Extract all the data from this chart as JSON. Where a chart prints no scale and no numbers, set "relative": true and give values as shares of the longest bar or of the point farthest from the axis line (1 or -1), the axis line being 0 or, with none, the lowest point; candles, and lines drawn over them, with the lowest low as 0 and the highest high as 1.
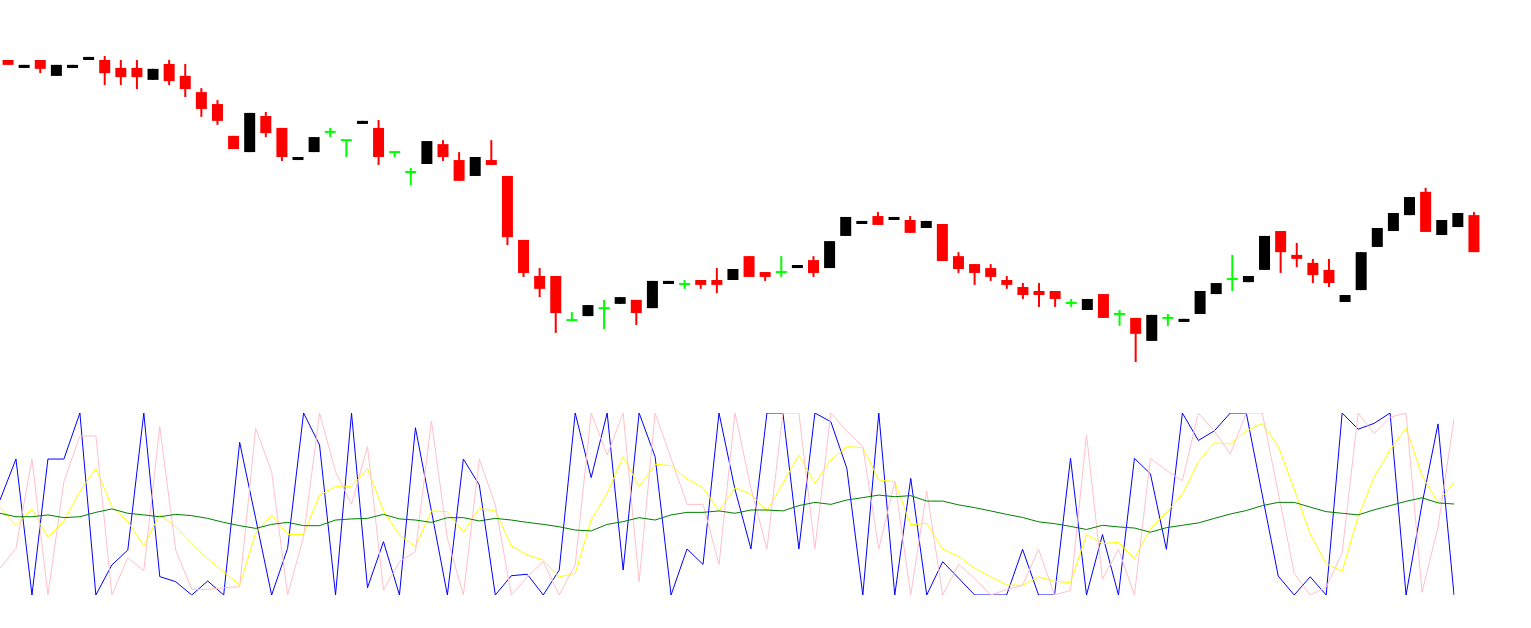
{
  "chart_data": [
    {
      "type": "candlestick",
      "relative": true,
      "legend": false,
      "categories": [
        null,
        null,
        null,
        null,
        null,
        null,
        null,
        null,
        null,
        null,
        null,
        null,
        null,
        null,
        null,
        null,
        null,
        null,
        null,
        null,
        null,
        null,
        null,
        null,
        null,
        null,
        null,
        null,
        null,
        null,
        null,
        null,
        null,
        null,
        null,
        null,
        null,
        null,
        null,
        null,
        null,
        null,
        null,
        null,
        null,
        null,
        null,
        null,
        null,
        null,
        null,
        null,
        null,
        null,
        null,
        null,
        null,
        null,
        null,
        null,
        null,
        null,
        null,
        null,
        null,
        null,
        null,
        null,
        null,
        null,
        null,
        null,
        null,
        null,
        null,
        null,
        null,
        null,
        null,
        null,
        null,
        null,
        null,
        null,
        null,
        null,
        null,
        null,
        null,
        null,
        null,
        null
      ],
      "ohlc": [
        [
          0.987,
          0.987,
          0.971,
          0.971
        ],
        [
          0.961,
          0.971,
          0.961,
          0.971
        ],
        [
          0.987,
          0.987,
          0.944,
          0.958
        ],
        [
          0.935,
          0.971,
          0.935,
          0.971
        ],
        [
          0.961,
          0.971,
          0.961,
          0.971
        ],
        [
          0.987,
          0.997,
          0.987,
          0.997
        ],
        [
          0.987,
          1,
          0.905,
          0.944
        ],
        [
          0.961,
          0.987,
          0.905,
          0.931
        ],
        [
          0.961,
          0.987,
          0.892,
          0.931
        ],
        [
          0.922,
          0.958,
          0.922,
          0.958
        ],
        [
          0.974,
          0.987,
          0.905,
          0.918
        ],
        [
          0.935,
          0.974,
          0.866,
          0.892
        ],
        [
          0.882,
          0.895,
          0.801,
          0.827
        ],
        [
          0.843,
          0.856,
          0.775,
          0.788
        ],
        [
          0.739,
          0.739,
          0.696,
          0.696
        ],
        [
          0.686,
          0.814,
          0.686,
          0.814
        ],
        [
          0.804,
          0.817,
          0.735,
          0.748
        ],
        [
          0.765,
          0.765,
          0.657,
          0.67
        ],
        [
          0.66,
          0.67,
          0.66,
          0.67
        ],
        [
          0.686,
          0.735,
          0.686,
          0.735
        ],
        [
          0.752,
          0.765,
          0.735,
          0.752
        ],
        [
          0.725,
          0.725,
          0.67,
          0.725
        ],
        [
          0.778,
          0.788,
          0.778,
          0.788
        ],
        [
          0.765,
          0.791,
          0.644,
          0.67
        ],
        [
          0.686,
          0.686,
          0.67,
          0.686
        ],
        [
          0.621,
          0.634,
          0.578,
          0.621
        ],
        [
          0.647,
          0.722,
          0.647,
          0.722
        ],
        [
          0.712,
          0.725,
          0.657,
          0.67
        ],
        [
          0.66,
          0.686,
          0.592,
          0.592
        ],
        [
          0.608,
          0.67,
          0.608,
          0.67
        ],
        [
          0.66,
          0.725,
          0.644,
          0.644
        ],
        [
          0.608,
          0.608,
          0.382,
          0.408
        ],
        [
          0.399,
          0.399,
          0.278,
          0.291
        ],
        [
          0.281,
          0.307,
          0.212,
          0.239
        ],
        [
          0.281,
          0.281,
          0.095,
          0.16
        ],
        [
          0.137,
          0.163,
          0.137,
          0.137
        ],
        [
          0.15,
          0.186,
          0.15,
          0.186
        ],
        [
          0.176,
          0.203,
          0.108,
          0.176
        ],
        [
          0.19,
          0.212,
          0.19,
          0.212
        ],
        [
          0.203,
          0.203,
          0.121,
          0.16
        ],
        [
          0.176,
          0.265,
          0.176,
          0.265
        ],
        [
          0.255,
          0.265,
          0.255,
          0.265
        ],
        [
          0.255,
          0.268,
          0.239,
          0.255
        ],
        [
          0.268,
          0.268,
          0.239,
          0.252
        ],
        [
          0.268,
          0.307,
          0.225,
          0.252
        ],
        [
          0.268,
          0.304,
          0.268,
          0.304
        ],
        [
          0.346,
          0.346,
          0.278,
          0.278
        ],
        [
          0.294,
          0.294,
          0.265,
          0.278
        ],
        [
          0.294,
          0.346,
          0.278,
          0.294
        ],
        [
          0.307,
          0.317,
          0.307,
          0.317
        ],
        [
          0.333,
          0.346,
          0.278,
          0.291
        ],
        [
          0.307,
          0.395,
          0.307,
          0.395
        ],
        [
          0.412,
          0.474,
          0.412,
          0.474
        ],
        [
          0.451,
          0.461,
          0.451,
          0.461
        ],
        [
          0.477,
          0.49,
          0.448,
          0.448
        ],
        [
          0.464,
          0.474,
          0.464,
          0.474
        ],
        [
          0.464,
          0.477,
          0.422,
          0.422
        ],
        [
          0.438,
          0.461,
          0.438,
          0.461
        ],
        [
          0.451,
          0.451,
          0.33,
          0.33
        ],
        [
          0.346,
          0.359,
          0.291,
          0.304
        ],
        [
          0.32,
          0.32,
          0.252,
          0.291
        ],
        [
          0.307,
          0.32,
          0.265,
          0.278
        ],
        [
          0.268,
          0.281,
          0.239,
          0.252
        ],
        [
          0.245,
          0.258,
          0.206,
          0.219
        ],
        [
          0.232,
          0.258,
          0.18,
          0.219
        ],
        [
          0.232,
          0.232,
          0.18,
          0.206
        ],
        [
          0.193,
          0.206,
          0.18,
          0.193
        ],
        [
          0.17,
          0.206,
          0.17,
          0.206
        ],
        [
          0.222,
          0.222,
          0.144,
          0.144
        ],
        [
          0.157,
          0.17,
          0.118,
          0.157
        ],
        [
          0.144,
          0.144,
          0,
          0.092
        ],
        [
          0.069,
          0.154,
          0.069,
          0.154
        ],
        [
          0.144,
          0.157,
          0.118,
          0.144
        ],
        [
          0.131,
          0.141,
          0.131,
          0.141
        ],
        [
          0.157,
          0.232,
          0.157,
          0.232
        ],
        [
          0.222,
          0.258,
          0.222,
          0.258
        ],
        [
          0.271,
          0.35,
          0.232,
          0.271
        ],
        [
          0.261,
          0.281,
          0.261,
          0.281
        ],
        [
          0.301,
          0.412,
          0.301,
          0.412
        ],
        [
          0.428,
          0.428,
          0.291,
          0.359
        ],
        [
          0.35,
          0.389,
          0.31,
          0.337
        ],
        [
          0.324,
          0.337,
          0.258,
          0.284
        ],
        [
          0.301,
          0.337,
          0.245,
          0.258
        ],
        [
          0.196,
          0.219,
          0.196,
          0.219
        ],
        [
          0.235,
          0.359,
          0.235,
          0.359
        ],
        [
          0.376,
          0.438,
          0.376,
          0.438
        ],
        [
          0.428,
          0.487,
          0.428,
          0.487
        ],
        [
          0.48,
          0.539,
          0.48,
          0.539
        ],
        [
          0.556,
          0.569,
          0.425,
          0.425
        ],
        [
          0.415,
          0.464,
          0.415,
          0.464
        ],
        [
          0.441,
          0.487,
          0.441,
          0.487
        ],
        [
          0.48,
          0.49,
          0.359,
          0.359
        ]
      ],
      "colors": [
        "#ff0000",
        "#000000",
        "#ff0000",
        "#000000",
        "#000000",
        "#000000",
        "#ff0000",
        "#ff0000",
        "#ff0000",
        "#000000",
        "#ff0000",
        "#ff0000",
        "#ff0000",
        "#ff0000",
        "#ff0000",
        "#000000",
        "#ff0000",
        "#ff0000",
        "#000000",
        "#000000",
        "#00ff00",
        "#00ff00",
        "#000000",
        "#ff0000",
        "#00ff00",
        "#00ff00",
        "#000000",
        "#ff0000",
        "#ff0000",
        "#000000",
        "#ff0000",
        "#ff0000",
        "#ff0000",
        "#ff0000",
        "#ff0000",
        "#00ff00",
        "#000000",
        "#00ff00",
        "#000000",
        "#ff0000",
        "#000000",
        "#000000",
        "#00ff00",
        "#ff0000",
        "#ff0000",
        "#000000",
        "#ff0000",
        "#ff0000",
        "#00ff00",
        "#000000",
        "#ff0000",
        "#000000",
        "#000000",
        "#000000",
        "#ff0000",
        "#000000",
        "#ff0000",
        "#000000",
        "#ff0000",
        "#ff0000",
        "#ff0000",
        "#ff0000",
        "#ff0000",
        "#ff0000",
        "#ff0000",
        "#ff0000",
        "#00ff00",
        "#000000",
        "#ff0000",
        "#00ff00",
        "#ff0000",
        "#000000",
        "#00ff00",
        "#000000",
        "#000000",
        "#000000",
        "#00ff00",
        "#000000",
        "#000000",
        "#ff0000",
        "#ff0000",
        "#ff0000",
        "#ff0000",
        "#000000",
        "#000000",
        "#000000",
        "#000000",
        "#000000",
        "#ff0000",
        "#000000",
        "#000000",
        "#ff0000"
      ]
    },
    {
      "type": "line",
      "relative": true,
      "legend": false,
      "marker": "none",
      "categories": [
        null,
        null,
        null,
        null,
        null,
        null,
        null,
        null,
        null,
        null,
        null,
        null,
        null,
        null,
        null,
        null,
        null,
        null,
        null,
        null,
        null,
        null,
        null,
        null,
        null,
        null,
        null,
        null,
        null,
        null,
        null,
        null,
        null,
        null,
        null,
        null,
        null,
        null,
        null,
        null,
        null,
        null,
        null,
        null,
        null,
        null,
        null,
        null,
        null,
        null,
        null,
        null,
        null,
        null,
        null,
        null,
        null,
        null,
        null,
        null,
        null,
        null,
        null,
        null,
        null,
        null,
        null,
        null,
        null,
        null,
        null,
        null,
        null,
        null,
        null,
        null,
        null,
        null,
        null,
        null,
        null,
        null,
        null,
        null,
        null,
        null,
        null,
        null,
        null,
        null,
        null,
        null
      ],
      "series": [
        {
          "color": "#008000",
          "values": [
            0.449,
            0.43,
            0.43,
            0.44,
            0.425,
            0.43,
            0.454,
            0.473,
            0.449,
            0.44,
            0.43,
            0.443,
            0.436,
            0.421,
            0.399,
            0.381,
            0.366,
            0.388,
            0.399,
            0.381,
            0.381,
            0.412,
            0.418,
            0.421,
            0.443,
            0.418,
            0.412,
            0.399,
            0.425,
            0.425,
            0.407,
            0.421,
            0.412,
            0.399,
            0.388,
            0.375,
            0.357,
            0.352,
            0.388,
            0.403,
            0.425,
            0.412,
            0.44,
            0.454,
            0.454,
            0.462,
            0.449,
            0.467,
            0.467,
            0.462,
            0.491,
            0.509,
            0.498,
            0.522,
            0.535,
            0.549,
            0.54,
            0.546,
            0.516,
            0.516,
            0.495,
            0.48,
            0.462,
            0.443,
            0.426,
            0.402,
            0.392,
            0.377,
            0.36,
            0.383,
            0.374,
            0.368,
            0.345,
            0.37,
            0.383,
            0.396,
            0.421,
            0.445,
            0.464,
            0.491,
            0.509,
            0.509,
            0.483,
            0.458,
            0.449,
            0.44,
            0.468,
            0.491,
            0.515,
            0.534,
            0.506,
            0.5
          ]
        },
        {
          "color": "#ffc0cb",
          "values": [
            0.147,
            0.256,
            0.747,
            0,
            0.623,
            0.874,
            0.874,
            0,
            0.205,
            0.134,
            0.925,
            0.247,
            0.031,
            0.031,
            0.04,
            0.046,
            0.916,
            0.678,
            0,
            0.321,
            1,
            0.678,
            0.498,
            0.815,
            0.027,
            0.183,
            0.238,
            0.956,
            0.311,
            0,
            0.747,
            0.495,
            0,
            0.1,
            0.183,
            0,
            0.165,
            1,
            0.769,
            1,
            0.073,
            1,
            0.751,
            0.498,
            0.498,
            0.168,
            1,
            0.586,
            0.253,
            1,
            1,
            0.253,
            1,
            0.9,
            0.815,
            0.253,
            0.623,
            0,
            0.571,
            0,
            0.168,
            0.092,
            0,
            0.03,
            0.053,
            0.251,
            0,
            0.025,
            0.879,
            0.087,
            0.251,
            0,
            0.751,
            0.685,
            0.628,
            1,
            0.902,
            0.774,
            1,
            1,
            0.562,
            0.119,
            0,
            0.043,
            0.232,
            1,
            0.887,
            0.977,
            1,
            0.015,
            0.374,
            0.968
          ]
        },
        {
          "color": "#ffff00",
          "values": [
            0.485,
            0.381,
            0.473,
            0.317,
            0.407,
            0.568,
            0.696,
            0.485,
            0.403,
            0.271,
            0.443,
            0.375,
            0.284,
            0.198,
            0.128,
            0.055,
            0.339,
            0.44,
            0.333,
            0.333,
            0.549,
            0.595,
            0.595,
            0.696,
            0.462,
            0.33,
            0.266,
            0.462,
            0.458,
            0.344,
            0.476,
            0.462,
            0.27,
            0.22,
            0.192,
            0.1,
            0.119,
            0.412,
            0.559,
            0.76,
            0.595,
            0.718,
            0.711,
            0.637,
            0.59,
            0.462,
            0.59,
            0.553,
            0.462,
            0.614,
            0.769,
            0.614,
            0.742,
            0.815,
            0.81,
            0.632,
            0.623,
            0.385,
            0.394,
            0.253,
            0.211,
            0.147,
            0.1,
            0.055,
            0.053,
            0.1,
            0.075,
            0.068,
            0.332,
            0.283,
            0.289,
            0.2,
            0.364,
            0.453,
            0.553,
            0.732,
            0.836,
            0.83,
            0.902,
            0.943,
            0.817,
            0.581,
            0.336,
            0.17,
            0.132,
            0.43,
            0.647,
            0.798,
            0.917,
            0.657,
            0.509,
            0.619
          ]
        },
        {
          "color": "#0000ff",
          "values": [
            0.522,
            0.747,
            0,
            0.747,
            0.747,
            1,
            0,
            0.165,
            0.247,
            1,
            0.101,
            0.073,
            0,
            0.077,
            0,
            0.839,
            0.421,
            0,
            0.256,
            1,
            0.824,
            0,
            1,
            0.04,
            0.293,
            0,
            0.919,
            0.462,
            0,
            0.747,
            0.604,
            0,
            0.106,
            0.114,
            0,
            0.137,
            1,
            0.645,
            1,
            0.137,
            1,
            0.76,
            0,
            0.253,
            0.168,
            1,
            0.58,
            0.253,
            1,
            1,
            0.253,
            1,
            0.952,
            0.696,
            0,
            1,
            0,
            0.641,
            0,
            0.183,
            0.092,
            0,
            0,
            0,
            0.251,
            0,
            0,
            0.751,
            0,
            0.332,
            0,
            0.751,
            0.666,
            0.251,
            1,
            0.849,
            0.902,
            1,
            1,
            0.55,
            0.104,
            0,
            0.1,
            0,
            1,
            0.911,
            0.943,
            1,
            0,
            0.5,
            0.94,
            0
          ]
        }
      ]
    }
  ]
}
